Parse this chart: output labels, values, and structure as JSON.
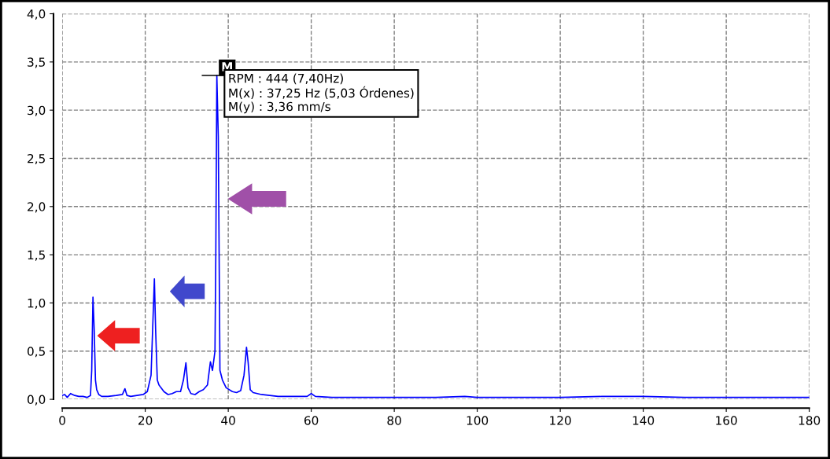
{
  "chart_data": {
    "type": "line",
    "x": [
      0,
      0.6,
      1.2,
      2,
      3,
      4,
      5,
      6,
      6.8,
      7.1,
      7.4,
      7.7,
      8.0,
      8.3,
      8.8,
      9.5,
      11,
      13,
      14.5,
      15.1,
      15.6,
      16.5,
      18,
      19.5,
      20.5,
      21.4,
      22.2,
      22.5,
      22.9,
      23.3,
      23.8,
      24.5,
      25.5,
      26.5,
      27.5,
      28.5,
      29.2,
      29.8,
      30.3,
      31,
      32,
      33,
      34,
      35,
      35.7,
      36.2,
      36.8,
      37.0,
      37.25,
      37.6,
      38.0,
      38.6,
      39.5,
      41,
      42,
      43,
      43.8,
      44.4,
      44.8,
      45.3,
      46,
      48,
      50,
      52,
      55,
      59,
      60,
      61,
      65,
      70,
      80,
      90,
      97,
      100,
      110,
      120,
      130,
      140,
      150,
      160,
      170,
      180
    ],
    "series": [
      {
        "color": "#0000ff",
        "values": [
          0.04,
          0.05,
          0.02,
          0.06,
          0.04,
          0.03,
          0.03,
          0.02,
          0.04,
          0.3,
          1.06,
          0.72,
          0.2,
          0.1,
          0.05,
          0.03,
          0.03,
          0.04,
          0.05,
          0.11,
          0.04,
          0.03,
          0.04,
          0.05,
          0.08,
          0.25,
          1.25,
          0.72,
          0.2,
          0.15,
          0.12,
          0.08,
          0.05,
          0.06,
          0.08,
          0.08,
          0.2,
          0.38,
          0.12,
          0.06,
          0.05,
          0.08,
          0.1,
          0.15,
          0.39,
          0.3,
          0.5,
          1.5,
          3.36,
          2.72,
          0.3,
          0.2,
          0.12,
          0.08,
          0.07,
          0.09,
          0.25,
          0.54,
          0.38,
          0.1,
          0.07,
          0.05,
          0.04,
          0.03,
          0.03,
          0.03,
          0.06,
          0.03,
          0.02,
          0.02,
          0.02,
          0.02,
          0.03,
          0.02,
          0.02,
          0.02,
          0.03,
          0.03,
          0.02,
          0.02,
          0.02,
          0.02
        ]
      }
    ],
    "xlim": [
      0,
      180
    ],
    "xticks": [
      0,
      20,
      40,
      60,
      80,
      100,
      120,
      140,
      160,
      180
    ],
    "ylim": [
      0,
      4
    ],
    "yticks": [
      {
        "value": 0,
        "label": "0,0"
      },
      {
        "value": 0.5,
        "label": "0,5"
      },
      {
        "value": 1,
        "label": "1,0"
      },
      {
        "value": 1.5,
        "label": "1,5"
      },
      {
        "value": 2,
        "label": "2,0"
      },
      {
        "value": 2.5,
        "label": "2,5"
      },
      {
        "value": 3,
        "label": "3,0"
      },
      {
        "value": 3.5,
        "label": "3,5"
      },
      {
        "value": 4,
        "label": "4,0"
      }
    ],
    "grid": true,
    "legend": false,
    "line_style": "solid",
    "marker": "none",
    "annotations": [
      {
        "text": "M",
        "x": 37.25,
        "y": 3.36
      },
      "RPM : 444 (7,40Hz)",
      "M(x) : 37,25 Hz (5,03 Órdenes)",
      "M(y) : 3,36 mm/s"
    ]
  }
}
